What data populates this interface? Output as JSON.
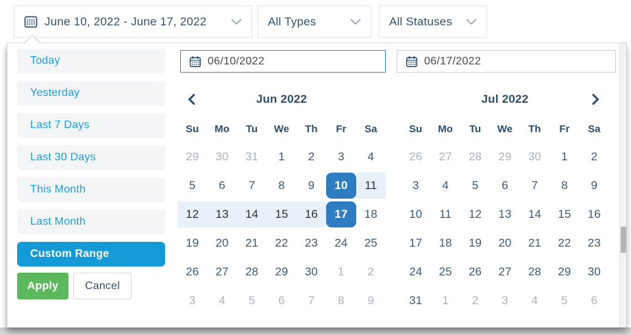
{
  "toolbar": {
    "date_range": {
      "label": "June 10, 2022 - June 17, 2022"
    },
    "types": {
      "label": "All Types"
    },
    "statuses": {
      "label": "All Statuses"
    }
  },
  "presets": {
    "items": [
      {
        "label": "Today",
        "active": false
      },
      {
        "label": "Yesterday",
        "active": false
      },
      {
        "label": "Last 7 Days",
        "active": false
      },
      {
        "label": "Last 30 Days",
        "active": false
      },
      {
        "label": "This Month",
        "active": false
      },
      {
        "label": "Last Month",
        "active": false
      },
      {
        "label": "Custom Range",
        "active": true
      }
    ],
    "apply_label": "Apply",
    "cancel_label": "Cancel"
  },
  "inputs": {
    "start": {
      "value": "06/10/2022",
      "focused": true
    },
    "end": {
      "value": "06/17/2022",
      "focused": false
    }
  },
  "calendars": [
    {
      "title": "Jun 2022",
      "weekdays": [
        "Su",
        "Mo",
        "Tu",
        "We",
        "Th",
        "Fr",
        "Sa"
      ],
      "weeks": [
        [
          {
            "d": "29",
            "s": "muted"
          },
          {
            "d": "30",
            "s": "muted"
          },
          {
            "d": "31",
            "s": "muted"
          },
          {
            "d": "1",
            "s": ""
          },
          {
            "d": "2",
            "s": ""
          },
          {
            "d": "3",
            "s": ""
          },
          {
            "d": "4",
            "s": ""
          }
        ],
        [
          {
            "d": "5",
            "s": ""
          },
          {
            "d": "6",
            "s": ""
          },
          {
            "d": "7",
            "s": ""
          },
          {
            "d": "8",
            "s": ""
          },
          {
            "d": "9",
            "s": ""
          },
          {
            "d": "10",
            "s": "sel"
          },
          {
            "d": "11",
            "s": "range"
          }
        ],
        [
          {
            "d": "12",
            "s": "range"
          },
          {
            "d": "13",
            "s": "range"
          },
          {
            "d": "14",
            "s": "range"
          },
          {
            "d": "15",
            "s": "range"
          },
          {
            "d": "16",
            "s": "range"
          },
          {
            "d": "17",
            "s": "sel"
          },
          {
            "d": "18",
            "s": ""
          }
        ],
        [
          {
            "d": "19",
            "s": ""
          },
          {
            "d": "20",
            "s": ""
          },
          {
            "d": "21",
            "s": ""
          },
          {
            "d": "22",
            "s": ""
          },
          {
            "d": "23",
            "s": ""
          },
          {
            "d": "24",
            "s": ""
          },
          {
            "d": "25",
            "s": ""
          }
        ],
        [
          {
            "d": "26",
            "s": ""
          },
          {
            "d": "27",
            "s": ""
          },
          {
            "d": "28",
            "s": ""
          },
          {
            "d": "29",
            "s": ""
          },
          {
            "d": "30",
            "s": ""
          },
          {
            "d": "1",
            "s": "muted"
          },
          {
            "d": "2",
            "s": "muted"
          }
        ],
        [
          {
            "d": "3",
            "s": "muted"
          },
          {
            "d": "4",
            "s": "muted"
          },
          {
            "d": "5",
            "s": "muted"
          },
          {
            "d": "6",
            "s": "muted"
          },
          {
            "d": "7",
            "s": "muted"
          },
          {
            "d": "8",
            "s": "muted"
          },
          {
            "d": "9",
            "s": "muted"
          }
        ]
      ]
    },
    {
      "title": "Jul 2022",
      "weekdays": [
        "Su",
        "Mo",
        "Tu",
        "We",
        "Th",
        "Fr",
        "Sa"
      ],
      "weeks": [
        [
          {
            "d": "26",
            "s": "muted"
          },
          {
            "d": "27",
            "s": "muted"
          },
          {
            "d": "28",
            "s": "muted"
          },
          {
            "d": "29",
            "s": "muted"
          },
          {
            "d": "30",
            "s": "muted"
          },
          {
            "d": "1",
            "s": ""
          },
          {
            "d": "2",
            "s": ""
          }
        ],
        [
          {
            "d": "3",
            "s": ""
          },
          {
            "d": "4",
            "s": ""
          },
          {
            "d": "5",
            "s": ""
          },
          {
            "d": "6",
            "s": ""
          },
          {
            "d": "7",
            "s": ""
          },
          {
            "d": "8",
            "s": ""
          },
          {
            "d": "9",
            "s": ""
          }
        ],
        [
          {
            "d": "10",
            "s": ""
          },
          {
            "d": "11",
            "s": ""
          },
          {
            "d": "12",
            "s": ""
          },
          {
            "d": "13",
            "s": ""
          },
          {
            "d": "14",
            "s": ""
          },
          {
            "d": "15",
            "s": ""
          },
          {
            "d": "16",
            "s": ""
          }
        ],
        [
          {
            "d": "17",
            "s": ""
          },
          {
            "d": "18",
            "s": ""
          },
          {
            "d": "19",
            "s": ""
          },
          {
            "d": "20",
            "s": ""
          },
          {
            "d": "21",
            "s": ""
          },
          {
            "d": "22",
            "s": ""
          },
          {
            "d": "23",
            "s": ""
          }
        ],
        [
          {
            "d": "24",
            "s": ""
          },
          {
            "d": "25",
            "s": ""
          },
          {
            "d": "26",
            "s": ""
          },
          {
            "d": "27",
            "s": ""
          },
          {
            "d": "28",
            "s": ""
          },
          {
            "d": "29",
            "s": ""
          },
          {
            "d": "30",
            "s": ""
          }
        ],
        [
          {
            "d": "31",
            "s": ""
          },
          {
            "d": "1",
            "s": "muted"
          },
          {
            "d": "2",
            "s": "muted"
          },
          {
            "d": "3",
            "s": "muted"
          },
          {
            "d": "4",
            "s": "muted"
          },
          {
            "d": "5",
            "s": "muted"
          },
          {
            "d": "6",
            "s": "muted"
          }
        ]
      ]
    }
  ],
  "colors": {
    "accent_blue": "#1b9ed9",
    "custom_range_blue": "#149bd7",
    "selected_day_blue": "#2e7dc0",
    "in_range_blue": "#e8f1f9",
    "apply_green": "#5cb85c",
    "navy_text": "#33516d",
    "muted_day_gray": "#aab3bb",
    "focused_input_border": "#2e95ad"
  }
}
